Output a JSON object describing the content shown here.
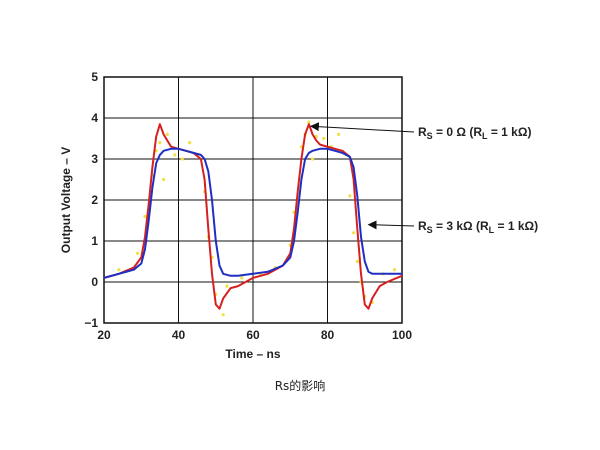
{
  "chart_data": {
    "type": "line",
    "title": "",
    "xlabel": "Time – ns",
    "ylabel": "Output Voltage – V",
    "xlim": [
      20,
      100
    ],
    "ylim": [
      -1,
      5
    ],
    "xticks": [
      "20",
      "40",
      "60",
      "80",
      "100"
    ],
    "yticks": [
      "5",
      "4",
      "3",
      "2",
      "1",
      "0",
      "−1"
    ],
    "grid": true,
    "series": [
      {
        "color": "#d62020",
        "x": [
          20,
          24,
          28,
          30,
          31,
          32,
          33,
          34,
          35,
          36,
          37,
          38,
          40,
          42,
          44,
          46,
          47,
          48,
          49,
          50,
          51,
          52,
          54,
          56,
          60,
          64,
          68,
          70,
          71,
          72,
          73,
          74,
          75,
          76,
          77,
          78,
          80,
          82,
          84,
          86,
          87,
          88,
          89,
          90,
          91,
          92,
          94,
          96,
          100
        ],
        "y": [
          0.1,
          0.2,
          0.35,
          0.6,
          1.1,
          1.9,
          2.8,
          3.55,
          3.85,
          3.6,
          3.45,
          3.3,
          3.25,
          3.2,
          3.15,
          3.0,
          2.5,
          1.3,
          0.2,
          -0.55,
          -0.65,
          -0.4,
          -0.15,
          -0.1,
          0.1,
          0.2,
          0.4,
          0.7,
          1.3,
          2.2,
          3.0,
          3.6,
          3.85,
          3.6,
          3.45,
          3.35,
          3.3,
          3.25,
          3.2,
          3.05,
          2.5,
          1.3,
          0.2,
          -0.55,
          -0.65,
          -0.4,
          -0.1,
          0.0,
          0.15
        ]
      },
      {
        "color": "#1f2fc4",
        "x": [
          20,
          24,
          28,
          30,
          31,
          32,
          33,
          34,
          35,
          36,
          38,
          40,
          42,
          44,
          46,
          47,
          48,
          49,
          50,
          51,
          52,
          54,
          56,
          60,
          64,
          68,
          70,
          71,
          72,
          73,
          74,
          75,
          76,
          78,
          80,
          82,
          84,
          86,
          87,
          88,
          89,
          90,
          91,
          92,
          94,
          96,
          100
        ],
        "y": [
          0.1,
          0.2,
          0.3,
          0.45,
          0.8,
          1.5,
          2.3,
          2.9,
          3.1,
          3.2,
          3.25,
          3.25,
          3.2,
          3.15,
          3.1,
          3.0,
          2.7,
          2.0,
          1.0,
          0.4,
          0.2,
          0.15,
          0.15,
          0.2,
          0.25,
          0.4,
          0.6,
          1.0,
          1.7,
          2.5,
          3.0,
          3.15,
          3.2,
          3.25,
          3.25,
          3.2,
          3.15,
          3.05,
          2.8,
          2.1,
          1.1,
          0.5,
          0.25,
          0.2,
          0.2,
          0.2,
          0.2
        ]
      },
      {
        "color": "#f2e040",
        "points": [
          [
            24,
            0.3
          ],
          [
            29,
            0.7
          ],
          [
            31,
            1.6
          ],
          [
            33,
            2.6
          ],
          [
            34,
            3.2
          ],
          [
            35,
            3.4
          ],
          [
            36,
            2.5
          ],
          [
            37,
            3.6
          ],
          [
            39,
            3.1
          ],
          [
            41,
            3.0
          ],
          [
            43,
            3.4
          ],
          [
            45,
            3.1
          ],
          [
            47,
            2.2
          ],
          [
            48,
            1.1
          ],
          [
            49,
            0.6
          ],
          [
            50,
            -0.3
          ],
          [
            52,
            -0.8
          ],
          [
            53,
            -0.1
          ],
          [
            57,
            0.1
          ],
          [
            62,
            0.2
          ],
          [
            66,
            0.35
          ],
          [
            70,
            0.9
          ],
          [
            71,
            1.7
          ],
          [
            72,
            2.0
          ],
          [
            73,
            3.3
          ],
          [
            74,
            3.6
          ],
          [
            75,
            3.9
          ],
          [
            76,
            3.0
          ],
          [
            77,
            3.55
          ],
          [
            79,
            3.5
          ],
          [
            81,
            3.3
          ],
          [
            83,
            3.6
          ],
          [
            85,
            3.1
          ],
          [
            86,
            2.1
          ],
          [
            87,
            1.2
          ],
          [
            88,
            0.5
          ],
          [
            89,
            0.0
          ],
          [
            90,
            -0.35
          ],
          [
            92,
            -0.5
          ],
          [
            95,
            0.2
          ],
          [
            98,
            0.3
          ]
        ]
      }
    ],
    "annotations": [
      {
        "label": "RS = 0 Ω (RL = 1 kΩ)",
        "target": [
          75,
          3.8
        ]
      },
      {
        "label": "RS = 3 kΩ (RL = 1 kΩ)",
        "target": [
          90.5,
          1.4
        ]
      }
    ]
  },
  "caption": "Rs的影响"
}
